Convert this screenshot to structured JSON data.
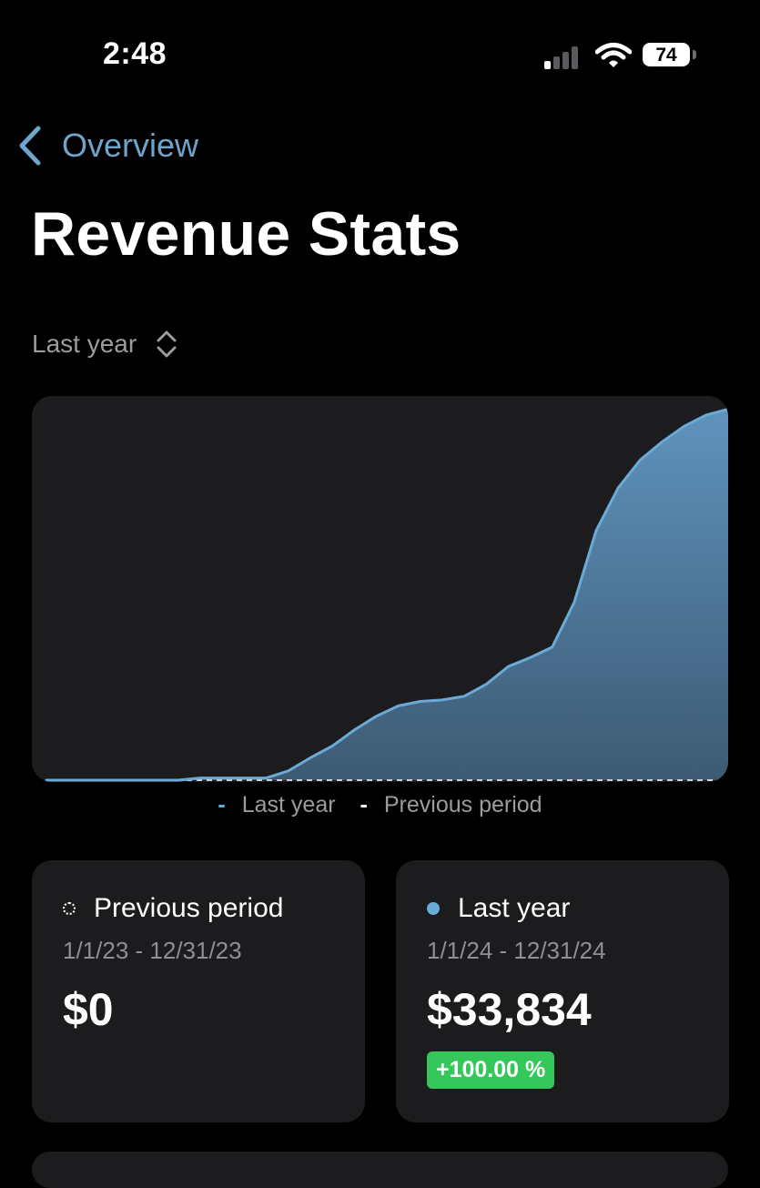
{
  "status_bar": {
    "time": "2:48",
    "battery": "74"
  },
  "nav": {
    "back_label": "Overview"
  },
  "page": {
    "title": "Revenue Stats"
  },
  "period_selector": {
    "value": "Last year"
  },
  "legend": {
    "items": [
      "Last year",
      "Previous period"
    ]
  },
  "cards": {
    "previous": {
      "label": "Previous period",
      "range": "1/1/23 - 12/31/23",
      "amount": "$0"
    },
    "current": {
      "label": "Last year",
      "range": "1/1/24 - 12/31/24",
      "amount": "$33,834",
      "change": "+100.00 %"
    }
  },
  "colors": {
    "accent": "#6fa4cc",
    "line": "#6aaad6",
    "card": "#1c1c1e",
    "badge": "#34c759"
  },
  "chart_data": {
    "type": "area",
    "series": [
      {
        "name": "Last year",
        "values": [
          0,
          0,
          0,
          0,
          0,
          0,
          0,
          60,
          60,
          60,
          60,
          250,
          600,
          920,
          1350,
          1720,
          2000,
          2120,
          2160,
          2260,
          2580,
          3060,
          3300,
          3580,
          4790,
          6720,
          7870,
          8620,
          9110,
          9530,
          9830,
          9990
        ]
      },
      {
        "name": "Previous period",
        "values": [
          0,
          0,
          0,
          0,
          0,
          0,
          0,
          0,
          0,
          0,
          0,
          0,
          0,
          0,
          0,
          0,
          0,
          0,
          0,
          0,
          0,
          0,
          0,
          0,
          0,
          0,
          0,
          0,
          0,
          0,
          0,
          0
        ]
      }
    ],
    "ylim": [
      0,
      10000
    ]
  }
}
